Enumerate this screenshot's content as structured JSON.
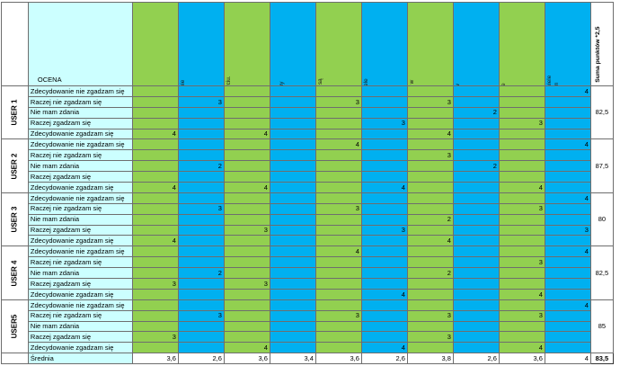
{
  "header": {
    "ocena_label": "OCENA",
    "sum_label": "Suma punktów *2,5",
    "questions": [
      "1. Będę często korzystał z systemu.",
      "2. System jest niepotrzebnie skomplikowany.",
      "3. System jest łatwy w użyciu.",
      "4. Będę potrzebować wsparcia technicznego, aby korzystać z systemu.",
      "5. Różne funkcje systemu są łatwo dostępne.",
      "6. W systemie jest zbyt wiele niespójności.",
      "7. Większość osób będzie w stanie opanować system bardzo szybko.",
      "8. System jest kłopotliwy w użyciu.",
      "9. Czuję się bardzo pewnie korzystając z systemu.",
      "10. Musiałem opanować wiele rzeczy przed rozpoczęciem pracy z systemem."
    ]
  },
  "answer_labels": [
    "Zdecydowanie nie zgadzam się",
    "Raczej nie zgadzam się",
    "Nie mam zdania",
    "Raczej zgadzam się",
    "Zdecydowanie zgadzam się"
  ],
  "users": [
    {
      "name": "USER 1",
      "score": "82,5",
      "cells": [
        [
          "",
          "",
          "",
          "",
          "",
          "",
          "",
          "",
          "",
          "4"
        ],
        [
          "",
          "3",
          "",
          "",
          "3",
          "",
          "3",
          "",
          "",
          ""
        ],
        [
          "",
          "",
          "",
          "",
          "",
          "",
          "",
          "2",
          "",
          ""
        ],
        [
          "",
          "",
          "",
          "",
          "",
          "3",
          "",
          "",
          "3",
          ""
        ],
        [
          "4",
          "",
          "4",
          "",
          "",
          "",
          "4",
          "",
          "",
          ""
        ]
      ]
    },
    {
      "name": "USER 2",
      "score": "87,5",
      "cells": [
        [
          "",
          "",
          "",
          "",
          "4",
          "",
          "",
          "",
          "",
          "4"
        ],
        [
          "",
          "",
          "",
          "",
          "",
          "",
          "3",
          "",
          "",
          ""
        ],
        [
          "",
          "2",
          "",
          "",
          "",
          "",
          "",
          "2",
          "",
          ""
        ],
        [
          "",
          "",
          "",
          "",
          "",
          "",
          "",
          "",
          "",
          ""
        ],
        [
          "4",
          "",
          "4",
          "",
          "",
          "4",
          "",
          "",
          "4",
          ""
        ]
      ]
    },
    {
      "name": "USER 3",
      "score": "80",
      "cells": [
        [
          "",
          "",
          "",
          "",
          "",
          "",
          "",
          "",
          "",
          "4"
        ],
        [
          "",
          "3",
          "",
          "",
          "3",
          "",
          "",
          "",
          "3",
          ""
        ],
        [
          "",
          "",
          "",
          "",
          "",
          "",
          "2",
          "",
          "",
          ""
        ],
        [
          "",
          "",
          "3",
          "",
          "",
          "3",
          "",
          "",
          "",
          "3"
        ],
        [
          "4",
          "",
          "",
          "",
          "",
          "",
          "4",
          "",
          "",
          ""
        ]
      ]
    },
    {
      "name": "USER 4",
      "score": "82,5",
      "cells": [
        [
          "",
          "",
          "",
          "",
          "4",
          "",
          "",
          "",
          "",
          "4"
        ],
        [
          "",
          "",
          "",
          "",
          "",
          "",
          "",
          "",
          "3",
          ""
        ],
        [
          "",
          "2",
          "",
          "",
          "",
          "",
          "2",
          "",
          "",
          ""
        ],
        [
          "3",
          "",
          "3",
          "",
          "",
          "",
          "",
          "",
          "",
          ""
        ],
        [
          "",
          "",
          "",
          "",
          "",
          "4",
          "",
          "",
          "4",
          ""
        ]
      ]
    },
    {
      "name": "USER5",
      "score": "85",
      "cells": [
        [
          "",
          "",
          "",
          "",
          "",
          "",
          "",
          "",
          "",
          "4"
        ],
        [
          "",
          "3",
          "",
          "",
          "3",
          "",
          "3",
          "",
          "3",
          ""
        ],
        [
          "",
          "",
          "",
          "",
          "",
          "",
          "",
          "",
          "",
          ""
        ],
        [
          "3",
          "",
          "",
          "",
          "",
          "",
          "3",
          "",
          "",
          ""
        ],
        [
          "",
          "",
          "4",
          "",
          "",
          "4",
          "",
          "",
          "4",
          ""
        ]
      ]
    }
  ],
  "footer": {
    "label": "Średnia",
    "averages": [
      "3,6",
      "2,6",
      "3,6",
      "3,4",
      "3,6",
      "2,6",
      "3,8",
      "2,6",
      "3,6",
      "4"
    ],
    "total": "83,5"
  },
  "colors": {
    "green": "#92d050",
    "blue": "#00b0f0",
    "label_bg": "#ccffff",
    "total_bg": "#ffff00"
  }
}
